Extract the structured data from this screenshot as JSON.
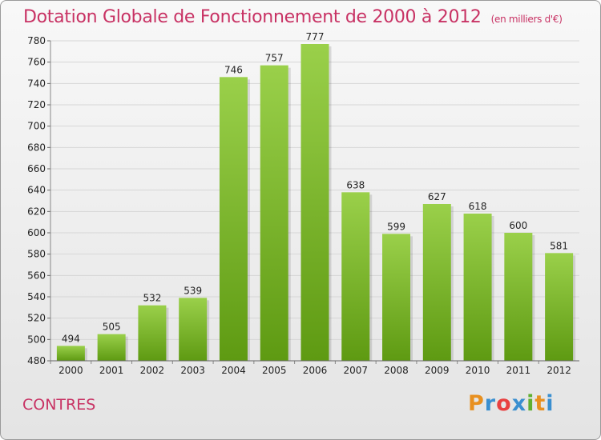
{
  "title": "Dotation Globale de Fonctionnement de 2000 à 2012",
  "unit": "(en milliers d'€)",
  "commune": "CONTRES",
  "logo": {
    "p": "P",
    "r": "r",
    "o": "o",
    "x": "x",
    "i1": "i",
    "t": "t",
    "i2": "i"
  },
  "colors": {
    "bar_light": "#9ad04a",
    "bar_dark": "#5e9a12",
    "title": "#c83264"
  },
  "chart_data": {
    "type": "bar",
    "categories": [
      "2000",
      "2001",
      "2002",
      "2003",
      "2004",
      "2005",
      "2006",
      "2007",
      "2008",
      "2009",
      "2010",
      "2011",
      "2012"
    ],
    "values": [
      494,
      505,
      532,
      539,
      746,
      757,
      777,
      638,
      599,
      627,
      618,
      600,
      581
    ],
    "ylim": [
      480,
      780
    ],
    "yticks": [
      480,
      500,
      520,
      540,
      560,
      580,
      600,
      620,
      640,
      660,
      680,
      700,
      720,
      740,
      760,
      780
    ],
    "grid": true
  }
}
